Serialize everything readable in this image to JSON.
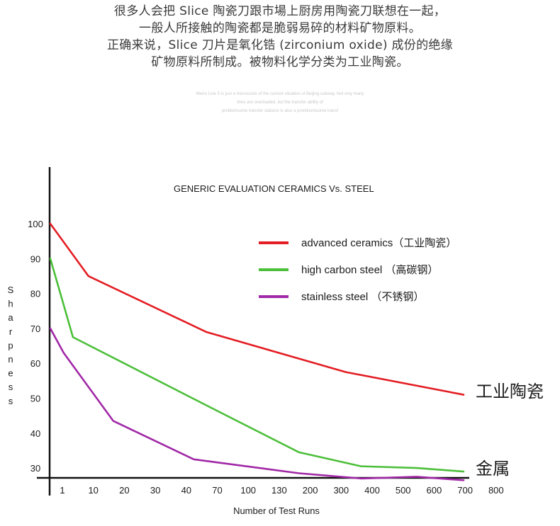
{
  "intro": {
    "lines": [
      "很多人会把 Slice 陶瓷刀跟市場上厨房用陶瓷刀联想在一起，",
      "一般人所接触的陶瓷都是脆弱易碎的材料矿物原料。",
      "正确来说，Slice 刀片是氧化锆 (zirconium oxide) 成份的绝缘",
      "矿物原料所制成。被物料化学分类为工业陶瓷。"
    ]
  },
  "fine_print": {
    "lines": [
      "Metro Line 5 is just a microcosm of the current situation of Beijing subway. Not only many",
      "lines are overloaded, but the transfer ability of",
      "problemsome transfer stations is also a prominentsome transf"
    ]
  },
  "chart_data": {
    "type": "line",
    "title": "GENERIC EVALUATION CERAMICS Vs. STEEL",
    "xlabel": "Number of Test Runs",
    "ylabel": "Sharpness",
    "categories": [
      "1",
      "10",
      "20",
      "30",
      "40",
      "70",
      "100",
      "130",
      "200",
      "300",
      "400",
      "500",
      "600",
      "700",
      "800"
    ],
    "y_ticks": [
      100,
      90,
      80,
      70,
      60,
      50,
      40,
      30
    ],
    "ylim": [
      25,
      105
    ],
    "grid": false,
    "legend_position": "top-right",
    "series": [
      {
        "name": "advanced ceramics（工业陶瓷）",
        "color": "#e31e24",
        "end_label": "工业陶瓷",
        "points": [
          [
            0,
            100
          ],
          [
            1.2,
            85
          ],
          [
            5.0,
            69
          ],
          [
            9.5,
            57.5
          ],
          [
            13.5,
            51
          ]
        ]
      },
      {
        "name": "high carbon steel （高碳钢）",
        "color": "#4cbf3a",
        "end_label": "",
        "points": [
          [
            0,
            90
          ],
          [
            0.7,
            67.5
          ],
          [
            5.0,
            48
          ],
          [
            8.0,
            34.5
          ],
          [
            10.0,
            30.5
          ],
          [
            11.8,
            30
          ],
          [
            13.5,
            29
          ]
        ]
      },
      {
        "name": "stainless steel （不锈钢）",
        "color": "#a128a6",
        "end_label": "金属",
        "points": [
          [
            0,
            70
          ],
          [
            0.4,
            63
          ],
          [
            2.0,
            43.5
          ],
          [
            4.6,
            32.5
          ],
          [
            8.0,
            28.5
          ],
          [
            10.0,
            27
          ],
          [
            11.8,
            27.5
          ],
          [
            13.5,
            26.5
          ]
        ]
      }
    ]
  }
}
